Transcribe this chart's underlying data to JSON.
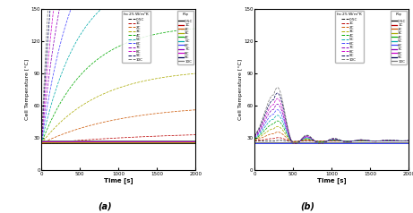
{
  "xlabel": "Time [s]",
  "ylabel": "Cell Temperature [°C]",
  "xlim": [
    0,
    2000
  ],
  "ylim": [
    0,
    150
  ],
  "yticks": [
    0,
    30,
    60,
    90,
    120,
    150
  ],
  "xticks": [
    0,
    500,
    1000,
    1500,
    2000
  ],
  "c_rates": [
    "0.5C",
    "1C",
    "2C",
    "3C",
    "4C",
    "5C",
    "6C",
    "7C",
    "8C",
    "9C",
    "10C"
  ],
  "c_rate_vals": [
    0.5,
    1,
    2,
    3,
    4,
    5,
    6,
    7,
    8,
    9,
    10
  ],
  "colors": [
    "#111111",
    "#bb0000",
    "#cc5500",
    "#aaaa00",
    "#00aa00",
    "#00aaaa",
    "#4444ff",
    "#8800bb",
    "#cc00cc",
    "#000055",
    "#777777"
  ],
  "T_ambient": 25,
  "label_a": "(a)",
  "label_b": "(b)",
  "legend_title_left": "h = 25 W/m²K",
  "legend_title_right": "R_{sp}"
}
